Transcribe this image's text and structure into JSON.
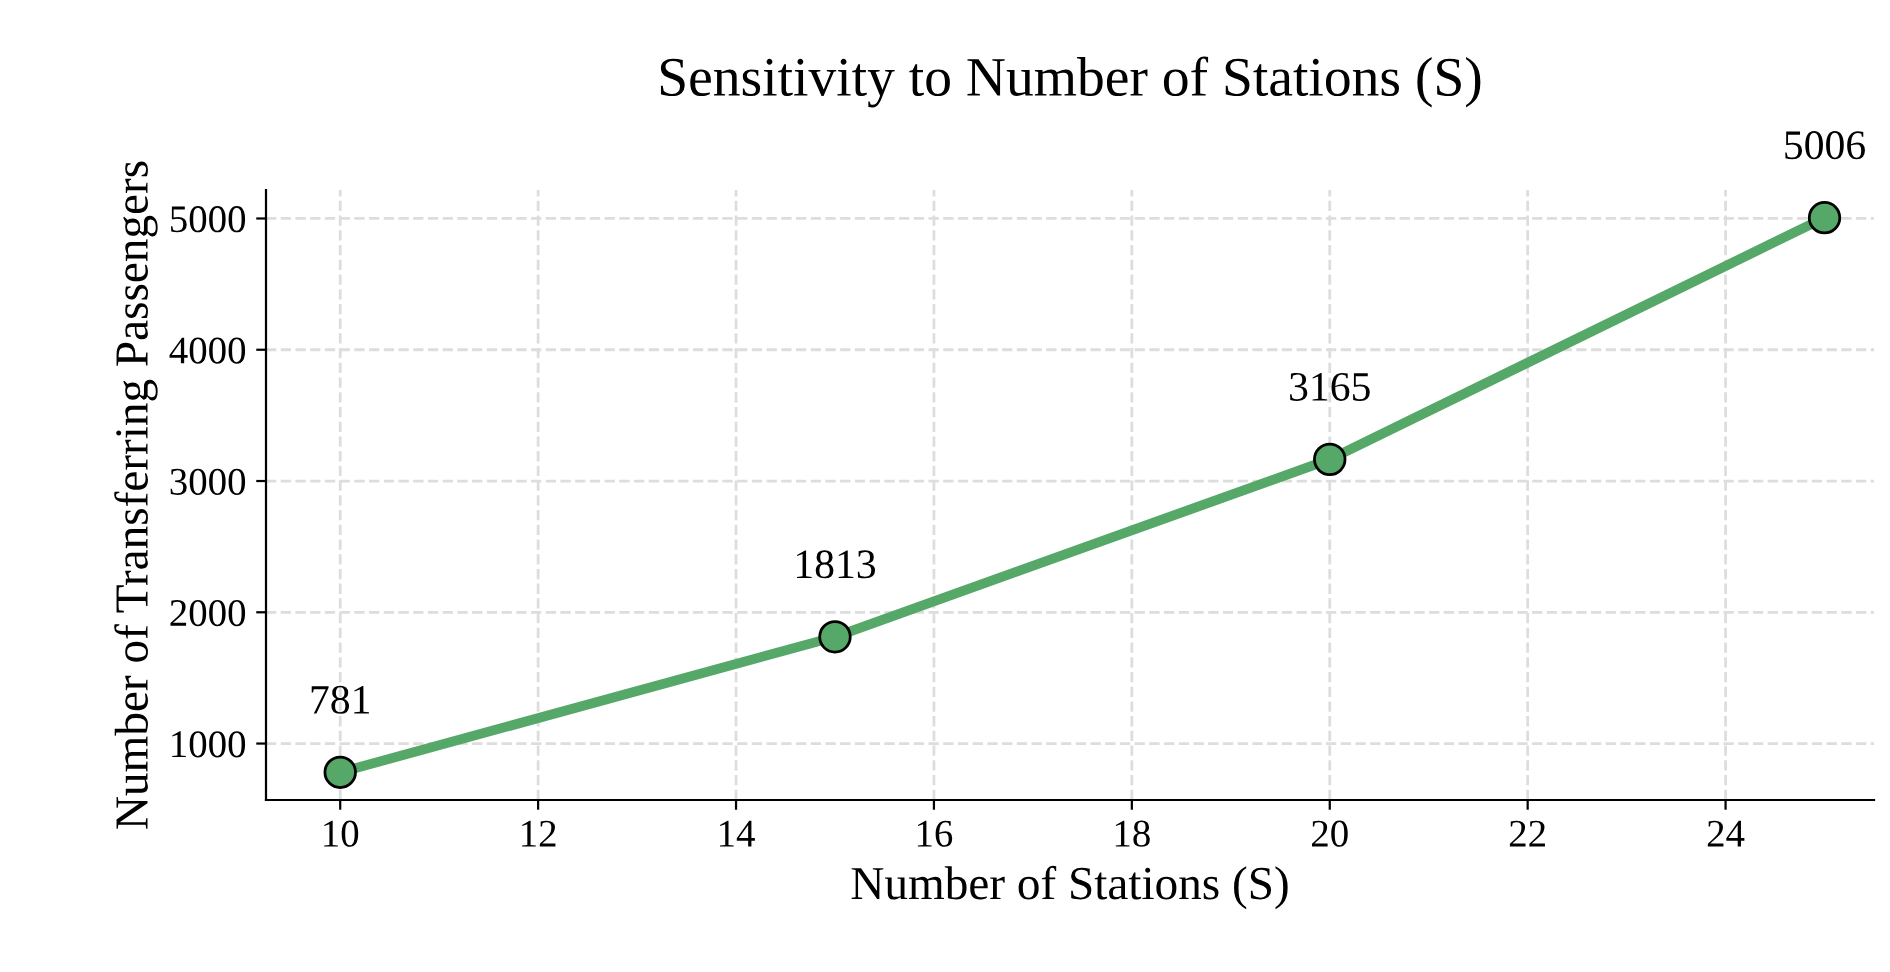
{
  "chart_data": {
    "type": "line",
    "title": "Sensitivity to Number of Stations (S)",
    "xlabel": "Number of Stations (S)",
    "ylabel": "Number of Transferring Passengers",
    "x": [
      10,
      15,
      20,
      25
    ],
    "series": [
      {
        "color": "#55a868",
        "values": [
          781,
          1813,
          3165,
          5006
        ]
      }
    ],
    "xlim": [
      9.25,
      25.5
    ],
    "xticks": [
      10,
      12,
      14,
      16,
      18,
      20,
      22,
      24
    ],
    "ylim": [
      570,
      5217
    ],
    "yticks": [
      1000,
      2000,
      3000,
      4000,
      5000
    ],
    "grid": true,
    "marker": "circle",
    "line_style": "solid",
    "data_labels": true
  }
}
